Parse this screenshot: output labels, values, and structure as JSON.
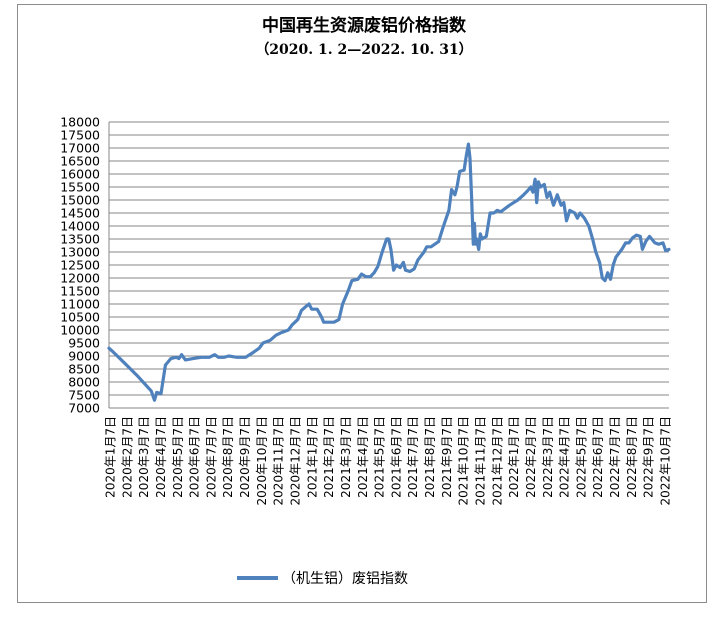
{
  "chart_data": {
    "type": "line",
    "title": "中国再生资源废铝价格指数",
    "subtitle": "（2020. 1. 2—2022. 10. 31）",
    "xlabel": "",
    "ylabel": "",
    "ylim": [
      7000,
      18000
    ],
    "yticks": [
      7000,
      7500,
      8000,
      8500,
      9000,
      9500,
      10000,
      10500,
      11000,
      11500,
      12000,
      12500,
      13000,
      13500,
      14000,
      14500,
      15000,
      15500,
      16000,
      16500,
      17000,
      17500,
      18000
    ],
    "grid": "horizontal",
    "legend_position": "bottom",
    "line_color": "#4f81bd",
    "x_tick_labels": [
      "2020年1月7日",
      "2020年2月7日",
      "2020年3月7日",
      "2020年4月7日",
      "2020年5月7日",
      "2020年6月7日",
      "2020年7月7日",
      "2020年8月7日",
      "2020年9月7日",
      "2020年10月7日",
      "2020年11月7日",
      "2020年12月7日",
      "2021年1月7日",
      "2021年2月7日",
      "2021年3月7日",
      "2021年4月7日",
      "2021年5月7日",
      "2021年6月7日",
      "2021年7月7日",
      "2021年8月7日",
      "2021年9月7日",
      "2021年10月7日",
      "2021年11月7日",
      "2021年12月7日",
      "2022年1月7日",
      "2022年2月7日",
      "2022年3月7日",
      "2022年4月7日",
      "2022年5月7日",
      "2022年6月7日",
      "2022年7月7日",
      "2022年8月7日",
      "2022年9月7日",
      "2022年10月7日"
    ],
    "series": [
      {
        "name": "（机生铝）废铝指数",
        "points": [
          [
            "2020-01-02",
            9300
          ],
          [
            "2020-01-10",
            9150
          ],
          [
            "2020-02-01",
            8700
          ],
          [
            "2020-02-25",
            8200
          ],
          [
            "2020-03-20",
            7650
          ],
          [
            "2020-03-26",
            7300
          ],
          [
            "2020-03-30",
            7600
          ],
          [
            "2020-04-07",
            7550
          ],
          [
            "2020-04-15",
            8650
          ],
          [
            "2020-04-25",
            8900
          ],
          [
            "2020-05-05",
            8950
          ],
          [
            "2020-05-10",
            8900
          ],
          [
            "2020-05-15",
            9050
          ],
          [
            "2020-05-22",
            8850
          ],
          [
            "2020-06-05",
            8900
          ],
          [
            "2020-06-20",
            8950
          ],
          [
            "2020-07-05",
            8950
          ],
          [
            "2020-07-15",
            9050
          ],
          [
            "2020-07-22",
            8950
          ],
          [
            "2020-08-01",
            8950
          ],
          [
            "2020-08-10",
            9000
          ],
          [
            "2020-08-25",
            8950
          ],
          [
            "2020-09-10",
            8950
          ],
          [
            "2020-09-25",
            9150
          ],
          [
            "2020-10-05",
            9300
          ],
          [
            "2020-10-12",
            9500
          ],
          [
            "2020-10-25",
            9600
          ],
          [
            "2020-11-05",
            9800
          ],
          [
            "2020-11-15",
            9900
          ],
          [
            "2020-11-28",
            10000
          ],
          [
            "2020-12-05",
            10200
          ],
          [
            "2020-12-15",
            10400
          ],
          [
            "2020-12-22",
            10750
          ],
          [
            "2020-12-30",
            10900
          ],
          [
            "2021-01-05",
            11000
          ],
          [
            "2021-01-10",
            10800
          ],
          [
            "2021-01-20",
            10800
          ],
          [
            "2021-01-28",
            10500
          ],
          [
            "2021-02-01",
            10300
          ],
          [
            "2021-02-20",
            10300
          ],
          [
            "2021-03-01",
            10400
          ],
          [
            "2021-03-08",
            11000
          ],
          [
            "2021-03-18",
            11500
          ],
          [
            "2021-03-25",
            11900
          ],
          [
            "2021-04-05",
            11950
          ],
          [
            "2021-04-12",
            12150
          ],
          [
            "2021-04-20",
            12050
          ],
          [
            "2021-04-28",
            12050
          ],
          [
            "2021-05-05",
            12200
          ],
          [
            "2021-05-12",
            12450
          ],
          [
            "2021-05-20",
            13000
          ],
          [
            "2021-05-28",
            13500
          ],
          [
            "2021-06-01",
            13500
          ],
          [
            "2021-06-05",
            13100
          ],
          [
            "2021-06-10",
            12300
          ],
          [
            "2021-06-15",
            12500
          ],
          [
            "2021-06-22",
            12400
          ],
          [
            "2021-06-28",
            12600
          ],
          [
            "2021-07-02",
            12300
          ],
          [
            "2021-07-10",
            12250
          ],
          [
            "2021-07-18",
            12350
          ],
          [
            "2021-07-25",
            12700
          ],
          [
            "2021-08-05",
            13000
          ],
          [
            "2021-08-10",
            13200
          ],
          [
            "2021-08-18",
            13200
          ],
          [
            "2021-08-25",
            13300
          ],
          [
            "2021-09-01",
            13400
          ],
          [
            "2021-09-10",
            14000
          ],
          [
            "2021-09-15",
            14300
          ],
          [
            "2021-09-20",
            14600
          ],
          [
            "2021-09-25",
            15400
          ],
          [
            "2021-10-01",
            15200
          ],
          [
            "2021-10-05",
            15500
          ],
          [
            "2021-10-10",
            16100
          ],
          [
            "2021-10-18",
            16150
          ],
          [
            "2021-10-22",
            16700
          ],
          [
            "2021-10-26",
            17150
          ],
          [
            "2021-10-29",
            16600
          ],
          [
            "2021-11-01",
            15000
          ],
          [
            "2021-11-04",
            13300
          ],
          [
            "2021-11-06",
            14100
          ],
          [
            "2021-11-08",
            13300
          ],
          [
            "2021-11-10",
            13500
          ],
          [
            "2021-11-14",
            13100
          ],
          [
            "2021-11-17",
            13700
          ],
          [
            "2021-11-20",
            13500
          ],
          [
            "2021-11-28",
            13600
          ],
          [
            "2021-12-05",
            14500
          ],
          [
            "2021-12-12",
            14500
          ],
          [
            "2021-12-18",
            14600
          ],
          [
            "2021-12-25",
            14550
          ],
          [
            "2022-01-10",
            14800
          ],
          [
            "2022-01-25",
            15000
          ],
          [
            "2022-02-05",
            15200
          ],
          [
            "2022-02-12",
            15350
          ],
          [
            "2022-02-18",
            15500
          ],
          [
            "2022-02-22",
            15300
          ],
          [
            "2022-02-26",
            15800
          ],
          [
            "2022-03-01",
            14900
          ],
          [
            "2022-03-04",
            15700
          ],
          [
            "2022-03-08",
            15500
          ],
          [
            "2022-03-15",
            15600
          ],
          [
            "2022-03-20",
            15100
          ],
          [
            "2022-03-25",
            15300
          ],
          [
            "2022-04-01",
            14800
          ],
          [
            "2022-04-08",
            15200
          ],
          [
            "2022-04-15",
            14800
          ],
          [
            "2022-04-20",
            14900
          ],
          [
            "2022-04-25",
            14200
          ],
          [
            "2022-05-01",
            14600
          ],
          [
            "2022-05-10",
            14500
          ],
          [
            "2022-05-15",
            14300
          ],
          [
            "2022-05-20",
            14500
          ],
          [
            "2022-05-28",
            14300
          ],
          [
            "2022-06-05",
            14000
          ],
          [
            "2022-06-12",
            13500
          ],
          [
            "2022-06-18",
            13000
          ],
          [
            "2022-06-25",
            12600
          ],
          [
            "2022-06-30",
            12000
          ],
          [
            "2022-07-05",
            11900
          ],
          [
            "2022-07-10",
            12200
          ],
          [
            "2022-07-15",
            11950
          ],
          [
            "2022-07-20",
            12500
          ],
          [
            "2022-07-25",
            12800
          ],
          [
            "2022-08-05",
            13100
          ],
          [
            "2022-08-12",
            13350
          ],
          [
            "2022-08-18",
            13350
          ],
          [
            "2022-08-25",
            13550
          ],
          [
            "2022-09-01",
            13650
          ],
          [
            "2022-09-08",
            13600
          ],
          [
            "2022-09-12",
            13100
          ],
          [
            "2022-09-18",
            13400
          ],
          [
            "2022-09-25",
            13600
          ],
          [
            "2022-10-05",
            13350
          ],
          [
            "2022-10-12",
            13300
          ],
          [
            "2022-10-20",
            13350
          ],
          [
            "2022-10-25",
            13050
          ],
          [
            "2022-10-31",
            13100
          ]
        ]
      }
    ]
  }
}
